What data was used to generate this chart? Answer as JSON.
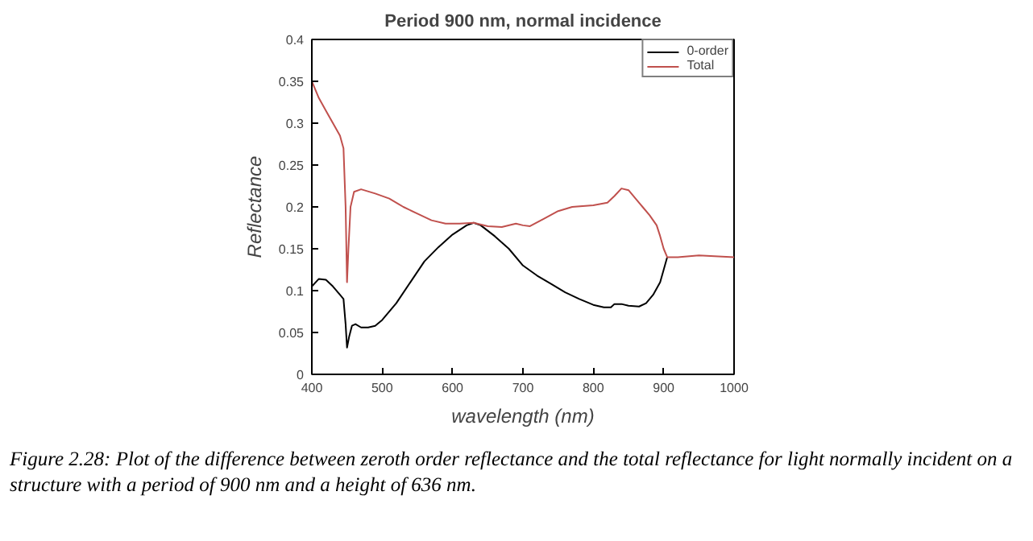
{
  "chart_data": {
    "type": "line",
    "title": "Period 900 nm, normal incidence",
    "xlabel": "wavelength (nm)",
    "ylabel": "Reflectance",
    "xlim": [
      400,
      1000
    ],
    "ylim": [
      0,
      0.4
    ],
    "xticks": [
      400,
      500,
      600,
      700,
      800,
      900,
      1000
    ],
    "yticks": [
      0,
      0.05,
      0.1,
      0.15,
      0.2,
      0.25,
      0.3,
      0.35,
      0.4
    ],
    "grid": false,
    "legend": "top right",
    "marker": "none",
    "line_style": "solid",
    "annotations": [
      "Figure 2.28: Plot of the difference between zeroth order reflectance and the total reflectance for light normally incident on a structure with a period of 900 nm and a height of 636 nm."
    ],
    "series": [
      {
        "name": "0-order",
        "color": "#000000",
        "x": [
          400,
          410,
          420,
          430,
          440,
          445,
          448,
          450,
          453,
          457,
          462,
          470,
          480,
          490,
          500,
          520,
          540,
          560,
          580,
          600,
          620,
          630,
          640,
          660,
          680,
          700,
          720,
          740,
          760,
          780,
          800,
          815,
          825,
          830,
          840,
          850,
          865,
          875,
          885,
          895,
          900,
          905
        ],
        "values": [
          0.105,
          0.114,
          0.113,
          0.105,
          0.095,
          0.09,
          0.06,
          0.032,
          0.045,
          0.058,
          0.06,
          0.056,
          0.056,
          0.058,
          0.065,
          0.085,
          0.11,
          0.135,
          0.152,
          0.167,
          0.178,
          0.181,
          0.178,
          0.165,
          0.15,
          0.13,
          0.118,
          0.108,
          0.098,
          0.09,
          0.083,
          0.08,
          0.08,
          0.084,
          0.084,
          0.082,
          0.081,
          0.085,
          0.095,
          0.11,
          0.125,
          0.14
        ]
      },
      {
        "name": "Total",
        "color": "#c0504d",
        "x": [
          400,
          410,
          420,
          430,
          440,
          445,
          448,
          450,
          452,
          455,
          460,
          470,
          490,
          510,
          530,
          550,
          570,
          590,
          610,
          630,
          650,
          670,
          690,
          700,
          710,
          730,
          750,
          770,
          800,
          820,
          830,
          840,
          850,
          860,
          870,
          880,
          890,
          895,
          900,
          905,
          920,
          950,
          1000
        ],
        "values": [
          0.35,
          0.33,
          0.315,
          0.3,
          0.285,
          0.27,
          0.2,
          0.11,
          0.15,
          0.2,
          0.218,
          0.221,
          0.216,
          0.21,
          0.2,
          0.192,
          0.184,
          0.18,
          0.18,
          0.181,
          0.177,
          0.176,
          0.18,
          0.178,
          0.177,
          0.186,
          0.195,
          0.2,
          0.202,
          0.205,
          0.213,
          0.222,
          0.22,
          0.21,
          0.2,
          0.19,
          0.178,
          0.165,
          0.15,
          0.14,
          0.14,
          0.142,
          0.14
        ]
      }
    ]
  }
}
